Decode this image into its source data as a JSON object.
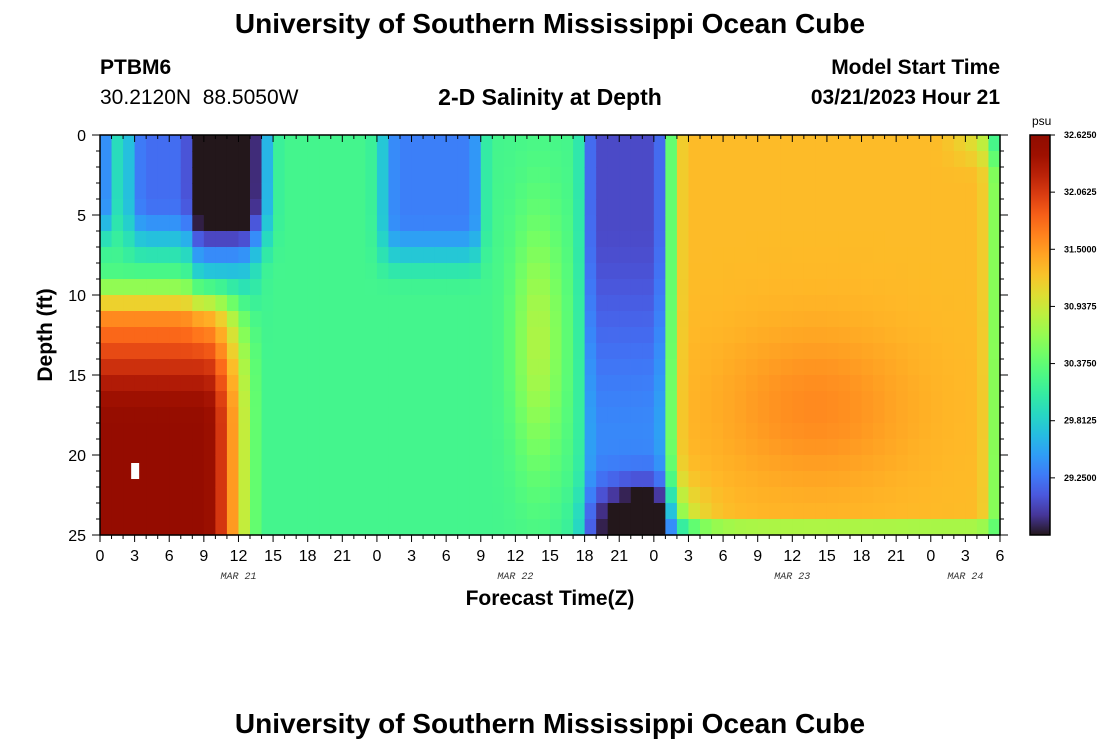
{
  "header": {
    "title": "University of Southern Mississippi Ocean Cube",
    "station_id": "PTBM6",
    "coords": "30.2120N  88.5050W",
    "subtitle": "2-D Salinity at Depth",
    "model_start_label": "Model Start Time",
    "model_start_value": "03/21/2023 Hour 21"
  },
  "footer": {
    "title": "University of Southern Mississippi Ocean Cube"
  },
  "chart_data": {
    "type": "heatmap",
    "title": "2-D Salinity at Depth",
    "xlabel": "Forecast Time(Z)",
    "ylabel": "Depth (ft)",
    "x_range_hours": [
      0,
      78
    ],
    "y_range_ft": [
      0,
      25
    ],
    "x_tick_hours": [
      0,
      3,
      6,
      9,
      12,
      15,
      18,
      21,
      24,
      27,
      30,
      33,
      36,
      39,
      42,
      45,
      48,
      51,
      54,
      57,
      60,
      63,
      66,
      69,
      72,
      75,
      78
    ],
    "x_tick_labels": [
      "0",
      "3",
      "6",
      "9",
      "12",
      "15",
      "18",
      "21",
      "0",
      "3",
      "6",
      "9",
      "12",
      "15",
      "18",
      "21",
      "0",
      "3",
      "6",
      "9",
      "12",
      "15",
      "18",
      "21",
      "0",
      "3",
      "6"
    ],
    "y_ticks": [
      0,
      5,
      10,
      15,
      20,
      25
    ],
    "y_tick_labels": [
      "0",
      "5",
      "10",
      "15",
      "20",
      "25"
    ],
    "date_labels": [
      {
        "hour": 12,
        "text": "MAR 21"
      },
      {
        "hour": 36,
        "text": "MAR 22"
      },
      {
        "hour": 60,
        "text": "MAR 23"
      },
      {
        "hour": 75,
        "text": "MAR 24"
      }
    ],
    "colorbar": {
      "unit": "psu",
      "min": 28.6875,
      "max": 32.625,
      "tick_values": [
        32.625,
        32.0625,
        31.5,
        30.9375,
        30.375,
        29.8125,
        29.25
      ],
      "tick_labels": [
        "32.6250",
        "32.0625",
        "31.5000",
        "30.9375",
        "30.3750",
        "29.8125",
        "29.2500"
      ],
      "colormap": "turbo"
    },
    "salinity_features_psu": [
      {
        "name": "bottom-high-salinity-left",
        "hour": 3,
        "depth_ft": 19,
        "value": 32.5
      },
      {
        "name": "surface-low-left",
        "hour": 8,
        "depth_ft": 3,
        "value": 29.4
      },
      {
        "name": "surface-low-mid",
        "hour": 30,
        "depth_ft": 3,
        "value": 29.4
      },
      {
        "name": "mid-column-tongue",
        "hour": 38,
        "depth_ft": 13,
        "value": 30.8
      },
      {
        "name": "low-band-hour-45",
        "hour": 45,
        "depth_ft": 6,
        "value": 29.1
      },
      {
        "name": "bottom-low-hour-47",
        "hour": 47,
        "depth_ft": 25,
        "value": 28.8
      },
      {
        "name": "high-block-right",
        "hour": 62,
        "depth_ft": 17,
        "value": 31.3
      }
    ]
  }
}
